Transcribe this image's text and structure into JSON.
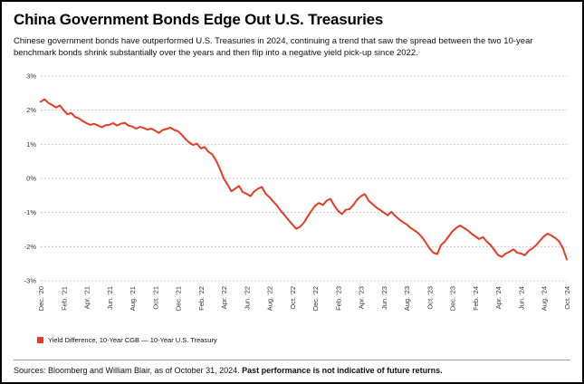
{
  "header": {
    "title": "China Government Bonds Edge Out U.S. Treasuries",
    "subtitle": "Chinese government bonds have outperformed U.S. Treasuries in 2024, continuing a trend that saw the spread between the two 10-year benchmark bonds shrink substantially over the years and then flip into a negative yield pick-up since 2022."
  },
  "chart_data": {
    "type": "line",
    "title": "China Government Bonds Edge Out U.S. Treasuries",
    "ylim": [
      -3,
      3
    ],
    "y_ticks": [
      3,
      2,
      1,
      0,
      -1,
      -2,
      -3
    ],
    "y_tick_labels": [
      "3%",
      "2%",
      "1%",
      "0%",
      "-1%",
      "-2%",
      "-3%"
    ],
    "grid": "dotted-horizontal",
    "grid_color": "#b8b8b8",
    "x_tick_labels": [
      "Dec. '20",
      "Feb. '21",
      "Apr. '21",
      "Jun. '21",
      "Aug. '21",
      "Oct. '21",
      "Dec. '21",
      "Feb. '22",
      "Apr. '22",
      "Jun. '22",
      "Aug. '22",
      "Oct. '22",
      "Dec. '22",
      "Feb. '23",
      "Apr. '23",
      "Jun. '23",
      "Aug. '23",
      "Oct. '23",
      "Dec. '23",
      "Feb. '24",
      "Apr. '24",
      "Jun. '24",
      "Aug. '24",
      "Oct. '24"
    ],
    "series": [
      {
        "name": "Yield Difference, 10-Year CGB — 10-Year U.S. Treasury",
        "color": "#e73b24",
        "values": [
          2.25,
          2.32,
          2.21,
          2.15,
          2.08,
          2.14,
          2.0,
          1.88,
          1.92,
          1.8,
          1.76,
          1.68,
          1.62,
          1.57,
          1.6,
          1.55,
          1.5,
          1.56,
          1.57,
          1.62,
          1.55,
          1.6,
          1.63,
          1.55,
          1.52,
          1.46,
          1.51,
          1.48,
          1.43,
          1.46,
          1.4,
          1.33,
          1.42,
          1.45,
          1.49,
          1.42,
          1.38,
          1.28,
          1.15,
          1.05,
          0.98,
          1.02,
          0.88,
          0.92,
          0.78,
          0.7,
          0.52,
          0.28,
          0.0,
          -0.18,
          -0.38,
          -0.3,
          -0.22,
          -0.4,
          -0.45,
          -0.52,
          -0.38,
          -0.3,
          -0.25,
          -0.45,
          -0.55,
          -0.68,
          -0.8,
          -0.95,
          -1.08,
          -1.22,
          -1.35,
          -1.48,
          -1.42,
          -1.3,
          -1.12,
          -0.95,
          -0.8,
          -0.72,
          -0.78,
          -0.65,
          -0.6,
          -0.8,
          -0.95,
          -1.05,
          -0.92,
          -0.9,
          -0.78,
          -0.62,
          -0.52,
          -0.46,
          -0.65,
          -0.75,
          -0.85,
          -0.92,
          -1.0,
          -1.08,
          -0.98,
          -1.1,
          -1.2,
          -1.28,
          -1.35,
          -1.45,
          -1.52,
          -1.6,
          -1.72,
          -1.88,
          -2.05,
          -2.18,
          -2.22,
          -1.95,
          -1.85,
          -1.7,
          -1.55,
          -1.45,
          -1.38,
          -1.45,
          -1.52,
          -1.62,
          -1.7,
          -1.78,
          -1.72,
          -1.85,
          -1.95,
          -2.1,
          -2.25,
          -2.3,
          -2.2,
          -2.15,
          -2.08,
          -2.18,
          -2.2,
          -2.25,
          -2.12,
          -2.05,
          -1.95,
          -1.82,
          -1.7,
          -1.62,
          -1.68,
          -1.75,
          -1.85,
          -2.05,
          -2.38
        ]
      }
    ]
  },
  "legend": {
    "label": "Yield Difference, 10-Year CGB — 10-Year U.S. Treasury",
    "swatch_color": "#e73b24"
  },
  "footer": {
    "sources": "Sources: Bloomberg and William Blair, as of October 31, 2024.",
    "disclaimer": "Past performance is not indicative of future returns."
  }
}
